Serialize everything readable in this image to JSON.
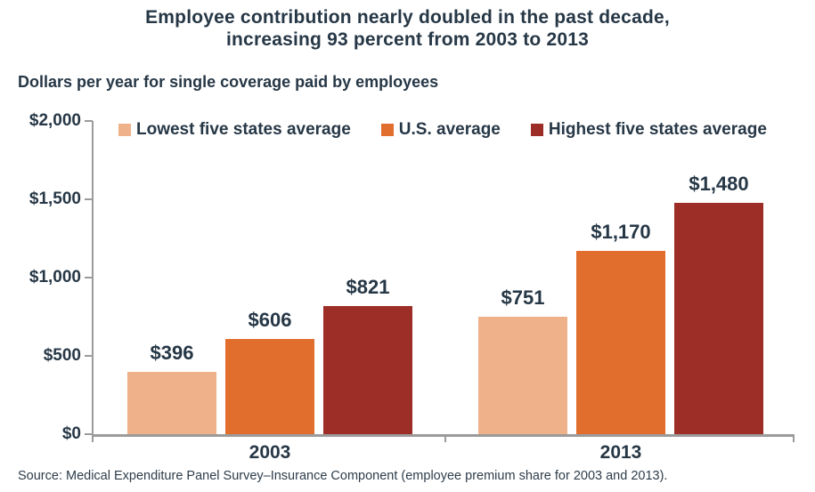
{
  "title": {
    "line1": "Employee contribution nearly doubled in the past decade,",
    "line2": "increasing 93 percent from 2003 to 2013"
  },
  "subtitle": "Dollars per year for single coverage paid by employees",
  "source": "Source: Medical Expenditure Panel Survey–Insurance Component (employee premium share for 2003 and 2013).",
  "colors": {
    "text": "#263746",
    "axis": "#9b9b9b",
    "series_lowest": "#efb189",
    "series_us": "#e26e2d",
    "series_highest": "#9d2e27"
  },
  "chart_data": {
    "type": "bar",
    "title": "Employee contribution nearly doubled in the past decade, increasing 93 percent from 2003 to 2013",
    "ylabel": "Dollars per year for single coverage paid by employees",
    "categories": [
      "2003",
      "2013"
    ],
    "series": [
      {
        "name": "Lowest five states average",
        "color": "#efb189",
        "values": [
          396,
          751
        ],
        "labels": [
          "$396",
          "$751"
        ]
      },
      {
        "name": "U.S. average",
        "color": "#e26e2d",
        "values": [
          606,
          1170
        ],
        "labels": [
          "$606",
          "$1,170"
        ]
      },
      {
        "name": "Highest five states average",
        "color": "#9d2e27",
        "values": [
          821,
          1480
        ],
        "labels": [
          "$821",
          "$1,480"
        ]
      }
    ],
    "y_axis": {
      "min": 0,
      "max": 2000,
      "tick_step": 500,
      "tick_labels": [
        "$0",
        "$500",
        "$1,000",
        "$1,500",
        "$2,000"
      ]
    },
    "legend_position": "top-inside",
    "grid": false
  }
}
